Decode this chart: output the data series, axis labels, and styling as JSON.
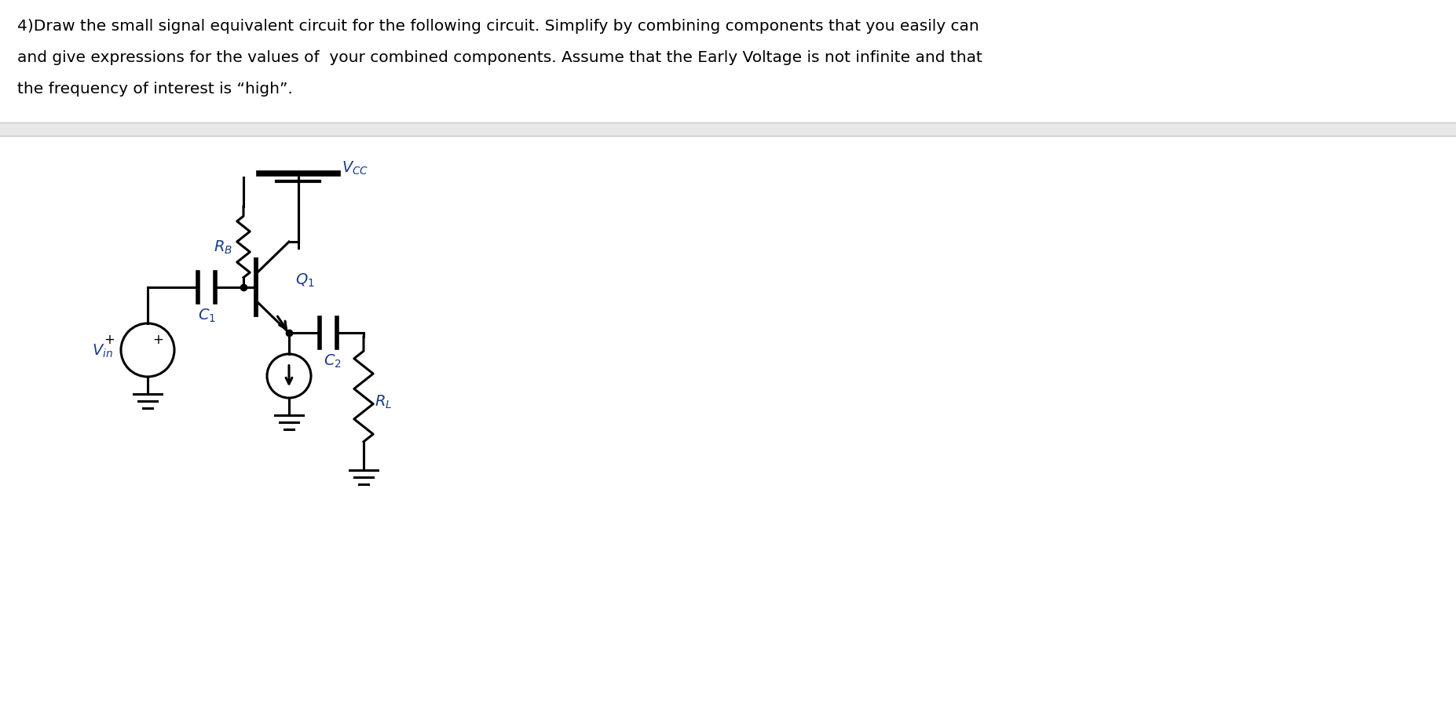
{
  "text_line1": "4)Draw the small signal equivalent circuit for the following circuit. Simplify by combining components that you easily can",
  "text_line2": "and give expressions for the values of  your combined components. Assume that the Early Voltage is not infinite and that",
  "text_line3": "the frequency of interest is “high”.",
  "bg_color": "#ffffff",
  "separator_color": "#c8c8c8",
  "circuit_color": "#000000",
  "label_color": "#1a3a8a",
  "text_color": "#000000",
  "text_fontsize": 14.5,
  "label_fontsize": 14,
  "gray_band_color": "#e8e8e8"
}
